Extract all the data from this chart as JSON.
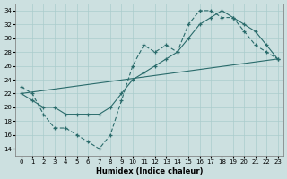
{
  "xlabel": "Humidex (Indice chaleur)",
  "xlim": [
    -0.5,
    23.5
  ],
  "ylim": [
    13.0,
    35.0
  ],
  "xticks": [
    0,
    1,
    2,
    3,
    4,
    5,
    6,
    7,
    8,
    9,
    10,
    11,
    12,
    13,
    14,
    15,
    16,
    17,
    18,
    19,
    20,
    21,
    22,
    23
  ],
  "yticks": [
    14,
    16,
    18,
    20,
    22,
    24,
    26,
    28,
    30,
    32,
    34
  ],
  "bg_color": "#cce0e0",
  "line_color": "#2a6b6b",
  "grid_color": "#aacccc",
  "curve1_x": [
    0,
    1,
    2,
    3,
    4,
    5,
    6,
    7,
    8,
    9,
    10,
    11,
    12,
    13,
    14,
    15,
    16,
    17,
    18,
    19,
    20,
    21,
    22,
    23
  ],
  "curve1_y": [
    23,
    22,
    19,
    17,
    17,
    16,
    15,
    14,
    16,
    21,
    26,
    29,
    28,
    29,
    28,
    32,
    34,
    34,
    33,
    33,
    31,
    29,
    28,
    27
  ],
  "curve2_x": [
    0,
    1,
    2,
    3,
    4,
    5,
    6,
    7,
    8,
    9,
    10,
    11,
    12,
    13,
    14,
    15,
    16,
    17,
    18,
    19,
    20,
    21,
    22,
    23
  ],
  "curve2_y": [
    22,
    21,
    20,
    20,
    19,
    19,
    19,
    19,
    20,
    22,
    24,
    25,
    26,
    27,
    28,
    30,
    32,
    33,
    34,
    33,
    32,
    31,
    29,
    27
  ],
  "curve3_x": [
    0,
    23
  ],
  "curve3_y": [
    22,
    27
  ]
}
